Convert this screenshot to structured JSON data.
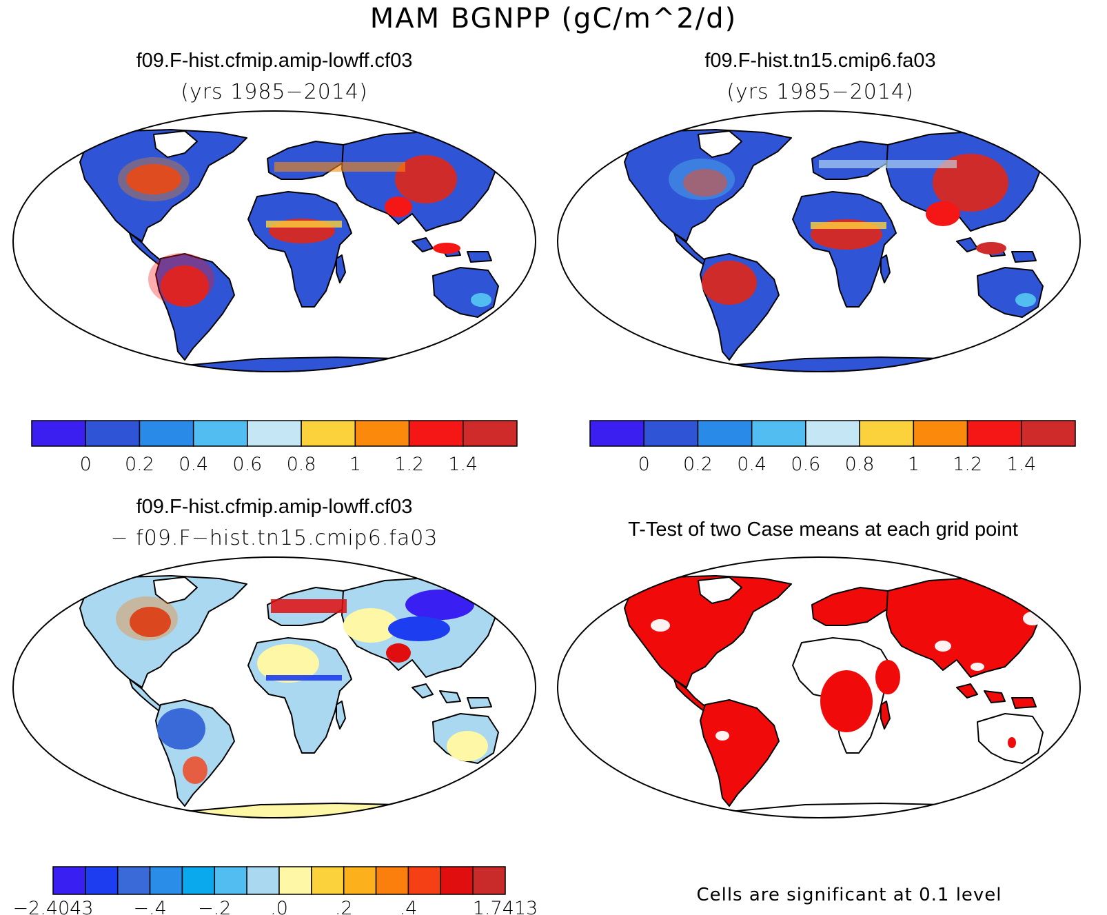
{
  "figure": {
    "title": "MAM BGNPP (gC/m^2/d)"
  },
  "panels": [
    {
      "id": "case1",
      "title": "f09.F-hist.cfmip.amip-lowff.cf03",
      "subtitle": "(yrs 1985−2014)",
      "colorbar": {
        "colors": [
          "#3b1ff0",
          "#2f55d6",
          "#2a8ae8",
          "#52bdf0",
          "#c4e6f5",
          "#fcd23c",
          "#fb8a0c",
          "#f51616",
          "#d02b2b"
        ],
        "tick_labels": [
          "0",
          "0.2",
          "0.4",
          "0.6",
          "0.8",
          "1",
          "1.2",
          "1.4"
        ]
      }
    },
    {
      "id": "case2",
      "title": "f09.F-hist.tn15.cmip6.fa03",
      "subtitle": "(yrs 1985−2014)",
      "colorbar": {
        "colors": [
          "#3b1ff0",
          "#2f55d6",
          "#2a8ae8",
          "#52bdf0",
          "#c4e6f5",
          "#fcd23c",
          "#fb8a0c",
          "#f51616",
          "#d02b2b"
        ],
        "tick_labels": [
          "0",
          "0.2",
          "0.4",
          "0.6",
          "0.8",
          "1",
          "1.2",
          "1.4"
        ]
      }
    },
    {
      "id": "diff",
      "title": "f09.F-hist.cfmip.amip-lowff.cf03",
      "subtitle": "− f09.F−hist.tn15.cmip6.fa03",
      "colorbar": {
        "colors": [
          "#3a1ff2",
          "#1c3df0",
          "#3a6ad8",
          "#2a8ee8",
          "#0aa8ec",
          "#52bdf0",
          "#aad8f0",
          "#fdf7a6",
          "#fcd23c",
          "#fcb01c",
          "#fb7f0c",
          "#f54016",
          "#e00e0e",
          "#c92a2a"
        ],
        "tick_labels": [
          "−2.4043",
          "−.4",
          "−.2",
          ".0",
          ".2",
          ".4",
          "1.7413"
        ]
      }
    },
    {
      "id": "ttest",
      "title": "T-Test of two Case means at each grid point",
      "note": "Cells are significant at 0.1 level",
      "colors": {
        "significant": "#f10a0a"
      }
    }
  ]
}
